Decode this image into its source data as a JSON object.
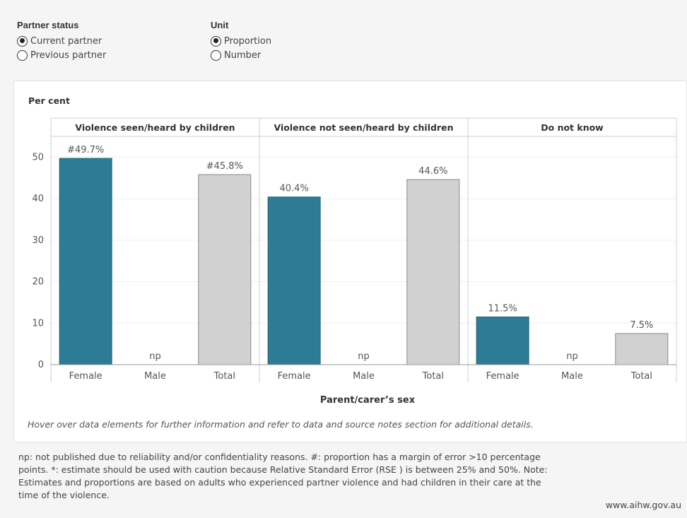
{
  "filters": {
    "partner_status": {
      "title": "Partner status",
      "options": [
        {
          "label": "Current partner",
          "checked": true
        },
        {
          "label": "Previous partner",
          "checked": false
        }
      ]
    },
    "unit": {
      "title": "Unit",
      "options": [
        {
          "label": "Proportion",
          "checked": true
        },
        {
          "label": "Number",
          "checked": false
        }
      ]
    }
  },
  "chart_data": {
    "type": "bar",
    "ylabel": "Per cent",
    "xlabel": "Parent/carer’s sex",
    "ylim": [
      0,
      55
    ],
    "yticks": [
      0,
      10,
      20,
      30,
      40,
      50
    ],
    "grid": true,
    "panels": [
      {
        "title": "Violence seen/heard by children",
        "categories": [
          "Female",
          "Male",
          "Total"
        ],
        "values": [
          49.7,
          null,
          45.8
        ],
        "labels": [
          "#49.7%",
          "np",
          "#45.8%"
        ]
      },
      {
        "title": "Violence not seen/heard by children",
        "categories": [
          "Female",
          "Male",
          "Total"
        ],
        "values": [
          40.4,
          null,
          44.6
        ],
        "labels": [
          "40.4%",
          "np",
          "44.6%"
        ]
      },
      {
        "title": "Do not know",
        "categories": [
          "Female",
          "Male",
          "Total"
        ],
        "values": [
          11.5,
          null,
          7.5
        ],
        "labels": [
          "11.5%",
          "np",
          "7.5%"
        ]
      }
    ],
    "colors": {
      "Female": "#2e7b96",
      "Male": "#2e7b96",
      "Total": "#d0d1d0"
    }
  },
  "hover_note": "Hover over data elements for further information and refer to data and source notes section for additional details.",
  "footnote": "np: not published due to reliability and/or confidentiality reasons. #: proportion has a margin of error >10 percentage points. *: estimate should be used with caution because Relative Standard Error (RSE ) is between 25% and 50%. Note: Estimates and proportions are based on adults who experienced partner violence and had children in their care at the time of the violence.",
  "source": "www.aihw.gov.au"
}
